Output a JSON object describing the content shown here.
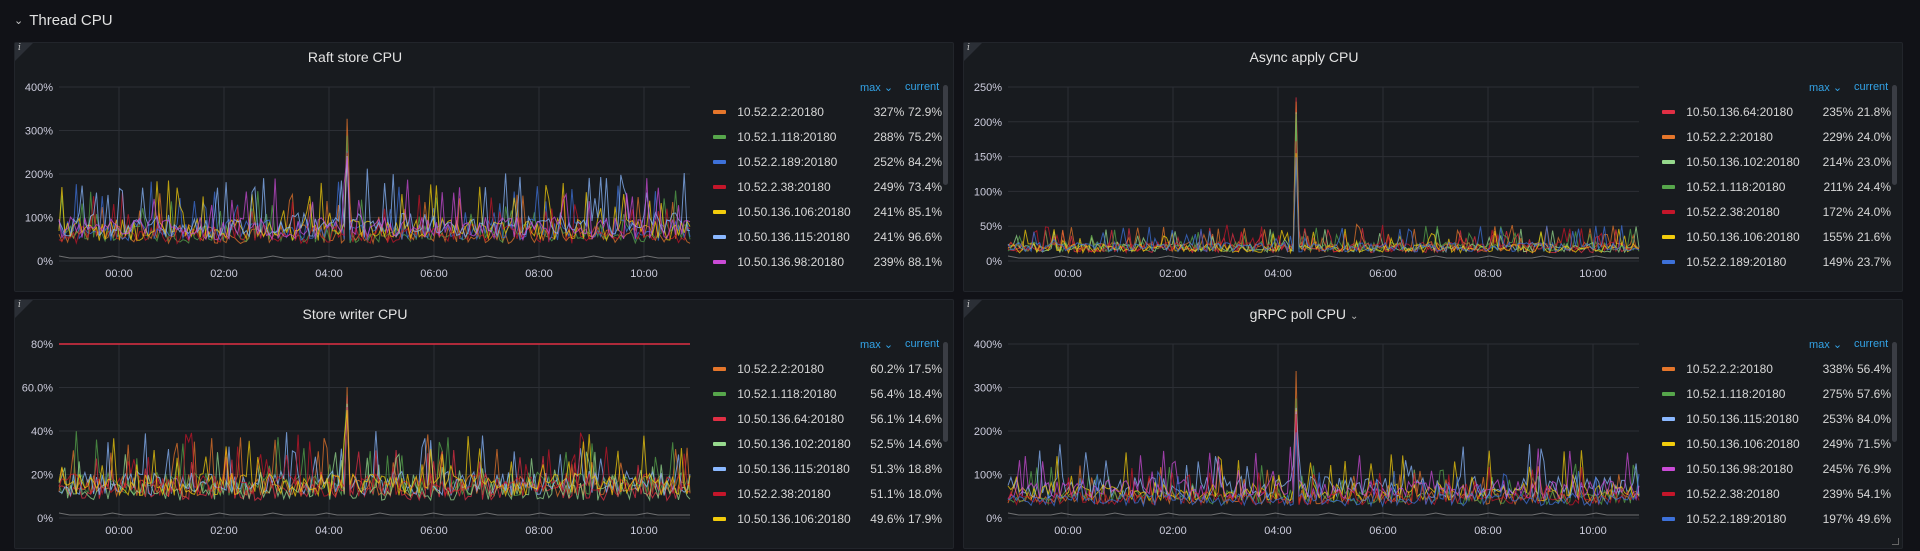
{
  "row": {
    "title": "Thread CPU",
    "chevron_icon": "chevron-down-icon"
  },
  "panels": [
    {
      "id": "raft",
      "title": "Raft store CPU",
      "has_dropdown": false,
      "yticks": [
        "400%",
        "300%",
        "200%",
        "100%",
        "0%"
      ],
      "ymax": 400,
      "xticks": [
        "00:00",
        "02:00",
        "04:00",
        "06:00",
        "08:00",
        "10:00"
      ],
      "threshold": null,
      "legend_headers": {
        "max": "max",
        "current": "current"
      },
      "series": [
        {
          "name": "10.52.2.2:20180",
          "max": "327%",
          "current": "72.9%",
          "color": "#e5762b"
        },
        {
          "name": "10.52.1.118:20180",
          "max": "288%",
          "current": "75.2%",
          "color": "#56a64b"
        },
        {
          "name": "10.52.2.189:20180",
          "max": "252%",
          "current": "84.2%",
          "color": "#3d71d9"
        },
        {
          "name": "10.52.2.38:20180",
          "max": "249%",
          "current": "73.4%",
          "color": "#c4162a"
        },
        {
          "name": "10.50.136.106:20180",
          "max": "241%",
          "current": "85.1%",
          "color": "#f2cc0c"
        },
        {
          "name": "10.50.136.115:20180",
          "max": "241%",
          "current": "96.6%",
          "color": "#8ab8ff"
        },
        {
          "name": "10.50.136.98:20180",
          "max": "239%",
          "current": "88.1%",
          "color": "#ca4bd6"
        }
      ]
    },
    {
      "id": "async",
      "title": "Async apply CPU",
      "has_dropdown": false,
      "yticks": [
        "250%",
        "200%",
        "150%",
        "100%",
        "50%",
        "0%"
      ],
      "ymax": 250,
      "xticks": [
        "00:00",
        "02:00",
        "04:00",
        "06:00",
        "08:00",
        "10:00"
      ],
      "threshold": null,
      "legend_headers": {
        "max": "max",
        "current": "current"
      },
      "series": [
        {
          "name": "10.50.136.64:20180",
          "max": "235%",
          "current": "21.8%",
          "color": "#e02f44"
        },
        {
          "name": "10.52.2.2:20180",
          "max": "229%",
          "current": "24.0%",
          "color": "#e5762b"
        },
        {
          "name": "10.50.136.102:20180",
          "max": "214%",
          "current": "23.0%",
          "color": "#96d98d"
        },
        {
          "name": "10.52.1.118:20180",
          "max": "211%",
          "current": "24.4%",
          "color": "#56a64b"
        },
        {
          "name": "10.52.2.38:20180",
          "max": "172%",
          "current": "24.0%",
          "color": "#c4162a"
        },
        {
          "name": "10.50.136.106:20180",
          "max": "155%",
          "current": "21.6%",
          "color": "#f2cc0c"
        },
        {
          "name": "10.52.2.189:20180",
          "max": "149%",
          "current": "23.7%",
          "color": "#3d71d9"
        }
      ]
    },
    {
      "id": "writer",
      "title": "Store writer CPU",
      "has_dropdown": false,
      "yticks": [
        "80%",
        "60.0%",
        "40%",
        "20%",
        "0%"
      ],
      "ymax": 80,
      "xticks": [
        "00:00",
        "02:00",
        "04:00",
        "06:00",
        "08:00",
        "10:00"
      ],
      "threshold": 80,
      "legend_headers": {
        "max": "max",
        "current": "current"
      },
      "series": [
        {
          "name": "10.52.2.2:20180",
          "max": "60.2%",
          "current": "17.5%",
          "color": "#e5762b"
        },
        {
          "name": "10.52.1.118:20180",
          "max": "56.4%",
          "current": "18.4%",
          "color": "#56a64b"
        },
        {
          "name": "10.50.136.64:20180",
          "max": "56.1%",
          "current": "14.6%",
          "color": "#e02f44"
        },
        {
          "name": "10.50.136.102:20180",
          "max": "52.5%",
          "current": "14.6%",
          "color": "#96d98d"
        },
        {
          "name": "10.50.136.115:20180",
          "max": "51.3%",
          "current": "18.8%",
          "color": "#8ab8ff"
        },
        {
          "name": "10.52.2.38:20180",
          "max": "51.1%",
          "current": "18.0%",
          "color": "#c4162a"
        },
        {
          "name": "10.50.136.106:20180",
          "max": "49.6%",
          "current": "17.9%",
          "color": "#f2cc0c"
        }
      ]
    },
    {
      "id": "grpc",
      "title": "gRPC poll CPU",
      "has_dropdown": true,
      "yticks": [
        "400%",
        "300%",
        "200%",
        "100%",
        "0%"
      ],
      "ymax": 400,
      "xticks": [
        "00:00",
        "02:00",
        "04:00",
        "06:00",
        "08:00",
        "10:00"
      ],
      "threshold": null,
      "legend_headers": {
        "max": "max",
        "current": "current"
      },
      "series": [
        {
          "name": "10.52.2.2:20180",
          "max": "338%",
          "current": "56.4%",
          "color": "#e5762b"
        },
        {
          "name": "10.52.1.118:20180",
          "max": "275%",
          "current": "57.6%",
          "color": "#56a64b"
        },
        {
          "name": "10.50.136.115:20180",
          "max": "253%",
          "current": "84.0%",
          "color": "#8ab8ff"
        },
        {
          "name": "10.50.136.106:20180",
          "max": "249%",
          "current": "71.5%",
          "color": "#f2cc0c"
        },
        {
          "name": "10.50.136.98:20180",
          "max": "245%",
          "current": "76.9%",
          "color": "#ca4bd6"
        },
        {
          "name": "10.52.2.38:20180",
          "max": "239%",
          "current": "54.1%",
          "color": "#c4162a"
        },
        {
          "name": "10.52.2.189:20180",
          "max": "197%",
          "current": "49.6%",
          "color": "#3d71d9"
        }
      ]
    }
  ]
}
